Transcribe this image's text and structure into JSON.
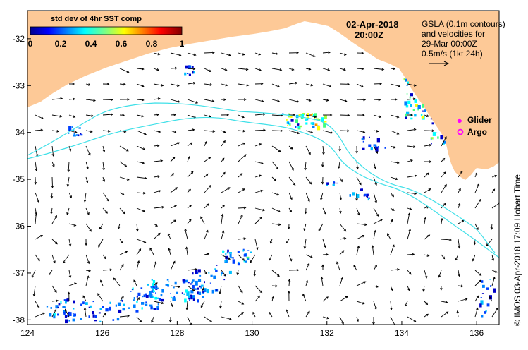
{
  "map": {
    "x_ticks": [
      "124",
      "126",
      "128",
      "130",
      "132",
      "134",
      "136"
    ],
    "y_ticks": [
      "-32",
      "-33",
      "-34",
      "-35",
      "-36",
      "-37",
      "-38"
    ],
    "lon_range": [
      124,
      136.6
    ],
    "lat_range": [
      -31.4,
      -38.1
    ]
  },
  "colorbar": {
    "title": "std dev of 4hr SST comp",
    "ticks": [
      "0",
      "0.2",
      "0.4",
      "0.6",
      "0.8",
      "1"
    ],
    "range": [
      0,
      1
    ]
  },
  "datetime": {
    "date": "02-Apr-2018",
    "time": "20:00Z"
  },
  "gsla_note": {
    "line1": "GSLA (0.1m contours)",
    "line2": "and velocities for",
    "line3": "29-Mar 00:00Z",
    "line4": "0.5m/s (1kt 24h)"
  },
  "legend": {
    "glider": "Glider",
    "argo": "Argo",
    "glider_color": "#ff00ff",
    "argo_color": "#ff00ff"
  },
  "credit": "©  IMOS 03-Apr-2018 17:09 Hobart Time",
  "colors": {
    "land": "#fdc997",
    "contour": "#40e0e8",
    "frame": "#000000"
  }
}
